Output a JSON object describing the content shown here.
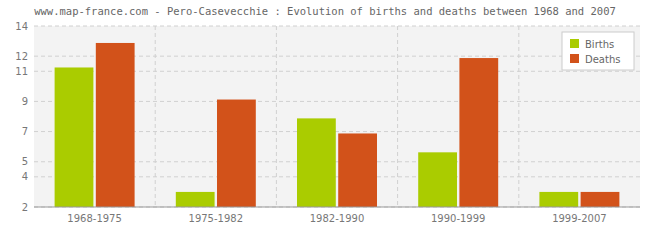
{
  "chart_data": {
    "type": "bar",
    "title": "www.map-france.com - Pero-Casevecchie : Evolution of births and deaths between 1968 and 2007",
    "categories": [
      "1968-1975",
      "1975-1982",
      "1982-1990",
      "1990-1999",
      "1999-2007"
    ],
    "series": [
      {
        "name": "Births",
        "color": "#aacc00",
        "values": [
          11.25,
          3.0,
          7.875,
          5.625,
          3.0
        ]
      },
      {
        "name": "Deaths",
        "color": "#d2521a",
        "values": [
          12.875,
          9.125,
          6.875,
          11.875,
          3.0
        ]
      }
    ],
    "ylim": [
      2,
      14
    ],
    "yticks": [
      2,
      4,
      5,
      7,
      9,
      11,
      12,
      14
    ],
    "grid": true,
    "legend": "upper right"
  }
}
